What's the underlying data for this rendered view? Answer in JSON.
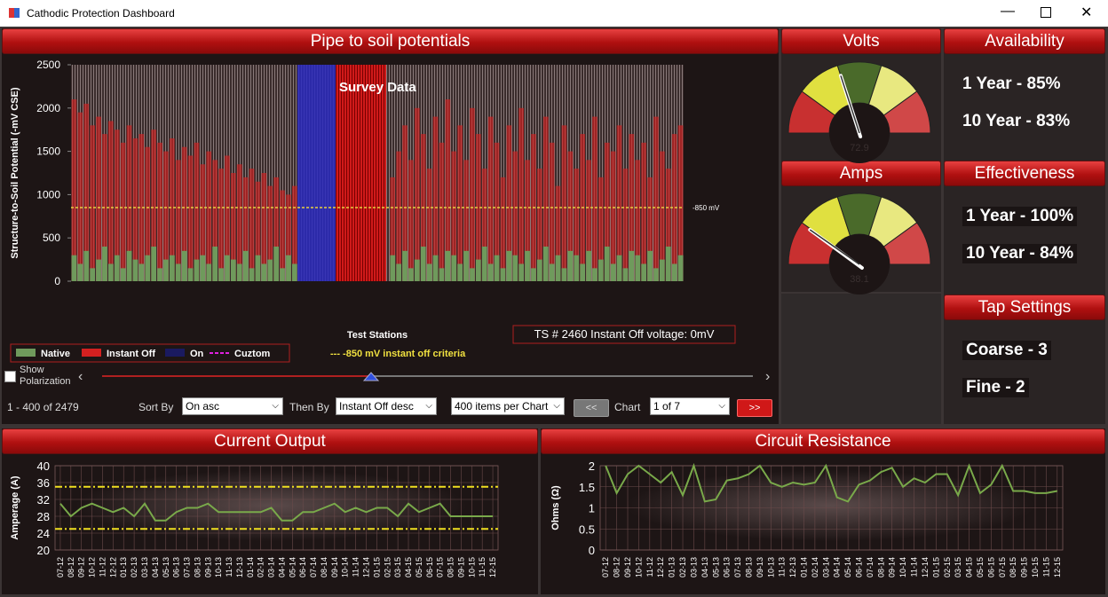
{
  "window_title": "Cathodic Protection Dashboard",
  "potentials": {
    "title": "Pipe to soil potentials",
    "y_label": "Structure-to-Soil Potential (-mV CSE)",
    "x_label": "Test Stations",
    "ylim": [
      0,
      2500
    ],
    "yticks": [
      0,
      500,
      1000,
      1500,
      2000,
      2500
    ],
    "annotation": "Survey Data",
    "criteria": 850,
    "criteria_label": "-850 mV",
    "criteria_legend": "--- -850 mV instant off criteria",
    "status": "TS # 2460 Instant Off voltage: 0mV",
    "legend": [
      {
        "name": "Native",
        "color": "#6f9a5c"
      },
      {
        "name": "Instant Off",
        "color": "#d42020"
      },
      {
        "name": "On",
        "color": "#1a1a60"
      },
      {
        "name": "Cuztom",
        "color": "#e020e0"
      }
    ],
    "native": [
      300,
      200,
      350,
      150,
      250,
      400,
      200,
      300,
      150,
      350,
      250,
      200,
      300,
      400,
      150,
      250,
      300,
      200,
      350,
      150,
      250,
      300,
      200,
      400,
      150,
      300,
      250,
      200,
      350,
      150,
      300,
      200,
      250,
      400,
      150,
      300,
      200,
      null,
      null,
      null,
      null,
      null,
      null,
      null,
      null,
      null,
      null,
      null,
      null,
      null,
      null,
      null,
      300,
      200,
      350,
      150,
      250,
      400,
      200,
      300,
      150,
      350,
      300,
      200,
      350,
      150,
      250,
      400,
      200,
      300,
      150,
      350,
      300,
      200,
      350,
      150,
      250,
      400,
      200,
      300,
      150,
      350,
      300,
      200,
      350,
      150,
      250,
      400,
      200,
      300,
      150,
      350,
      300,
      200,
      350,
      150,
      250,
      400,
      200,
      300
    ],
    "instant_off": [
      2100,
      1950,
      2050,
      1800,
      1900,
      1700,
      1850,
      1750,
      1600,
      1800,
      1650,
      1700,
      1550,
      1750,
      1600,
      1500,
      1650,
      1400,
      1550,
      1450,
      1600,
      1350,
      1500,
      1400,
      1300,
      1450,
      1250,
      1350,
      1200,
      1300,
      1150,
      1250,
      1100,
      1200,
      1050,
      1000,
      1100,
      null,
      null,
      null,
      null,
      null,
      null,
      null,
      null,
      null,
      null,
      null,
      null,
      null,
      null,
      null,
      1200,
      1500,
      1800,
      1400,
      2000,
      1700,
      1300,
      1900,
      1600,
      2100,
      1500,
      1800,
      1400,
      2000,
      1700,
      1300,
      1900,
      1600,
      1200,
      1800,
      1500,
      2000,
      1400,
      1700,
      1300,
      1900,
      1600,
      1100,
      1800,
      1500,
      1300,
      1700,
      1400,
      1900,
      1200,
      1600,
      1500,
      1800,
      1300,
      1700,
      1400,
      1600,
      1200,
      1900,
      1500,
      1300,
      1700,
      1800
    ]
  },
  "controls": {
    "show_polarization": "Show Polarization",
    "range": "1 - 400 of 2479",
    "sort_by": "Sort By",
    "sort_value": "On asc",
    "then_by": "Then By",
    "then_value": "Instant Off desc",
    "per_chart": "400 items per Chart",
    "prev": "<<",
    "chart": "Chart",
    "chart_value": "1 of 7",
    "next": ">>"
  },
  "volts": {
    "title": "Volts",
    "value": 72.9
  },
  "amps": {
    "title": "Amps",
    "value": 38.1
  },
  "availability": {
    "title": "Availability",
    "lines": [
      "1 Year - 85%",
      "10 Year - 83%"
    ]
  },
  "effectiveness": {
    "title": "Effectiveness",
    "lines": [
      "1 Year - 100%",
      "10 Year - 84%"
    ]
  },
  "tap_settings": {
    "title": "Tap Settings",
    "lines": [
      "Coarse - 3",
      "Fine - 2"
    ]
  },
  "current": {
    "title": "Current Output",
    "y_label": "Amperage (A)",
    "ylim": [
      20,
      40
    ],
    "yticks": [
      20,
      24,
      28,
      32,
      36,
      40
    ],
    "limits": [
      35,
      25
    ],
    "color": "#79a94a",
    "categories": [
      "07-12",
      "08-12",
      "09-12",
      "10-12",
      "11-12",
      "12-12",
      "01-13",
      "02-13",
      "03-13",
      "04-13",
      "05-13",
      "06-13",
      "07-13",
      "08-13",
      "09-13",
      "10-13",
      "11-13",
      "12-13",
      "01-14",
      "02-14",
      "03-14",
      "04-14",
      "05-14",
      "06-14",
      "07-14",
      "08-14",
      "09-14",
      "10-14",
      "11-14",
      "12-14",
      "01-15",
      "02-15",
      "03-15",
      "04-15",
      "05-15",
      "06-15",
      "07-15",
      "08-15",
      "09-15",
      "10-15",
      "11-15",
      "12-15"
    ],
    "values": [
      31,
      28,
      30,
      31,
      30,
      29,
      30,
      28,
      31,
      27,
      27,
      29,
      30,
      30,
      31,
      29,
      29,
      29,
      29,
      29,
      30,
      27,
      27,
      29,
      29,
      30,
      31,
      29,
      30,
      29,
      30,
      30,
      28,
      31,
      29,
      30,
      31,
      28,
      28,
      28,
      28,
      28
    ]
  },
  "resistance": {
    "title": "Circuit Resistance",
    "y_label": "Ohms (Ω)",
    "ylim": [
      0,
      2
    ],
    "yticks": [
      0,
      0.5,
      1,
      1.5,
      2
    ],
    "color": "#79a94a",
    "categories": [
      "07-12",
      "08-12",
      "09-12",
      "10-12",
      "11-12",
      "12-12",
      "01-13",
      "02-13",
      "03-13",
      "04-13",
      "05-13",
      "06-13",
      "07-13",
      "08-13",
      "09-13",
      "10-13",
      "11-13",
      "12-13",
      "01-14",
      "02-14",
      "03-14",
      "04-14",
      "05-14",
      "06-14",
      "07-14",
      "08-14",
      "09-14",
      "10-14",
      "11-14",
      "12-14",
      "01-15",
      "02-15",
      "03-15",
      "04-15",
      "05-15",
      "06-15",
      "07-15",
      "08-15",
      "09-15",
      "10-15",
      "11-15",
      "12-15"
    ],
    "values": [
      2,
      1.35,
      1.8,
      2,
      1.8,
      1.6,
      1.85,
      1.3,
      2,
      1.15,
      1.2,
      1.65,
      1.7,
      1.8,
      2,
      1.6,
      1.5,
      1.6,
      1.55,
      1.6,
      2,
      1.25,
      1.15,
      1.55,
      1.65,
      1.85,
      1.95,
      1.5,
      1.7,
      1.6,
      1.8,
      1.8,
      1.3,
      2,
      1.35,
      1.55,
      2,
      1.4,
      1.4,
      1.35,
      1.35,
      1.4
    ]
  }
}
